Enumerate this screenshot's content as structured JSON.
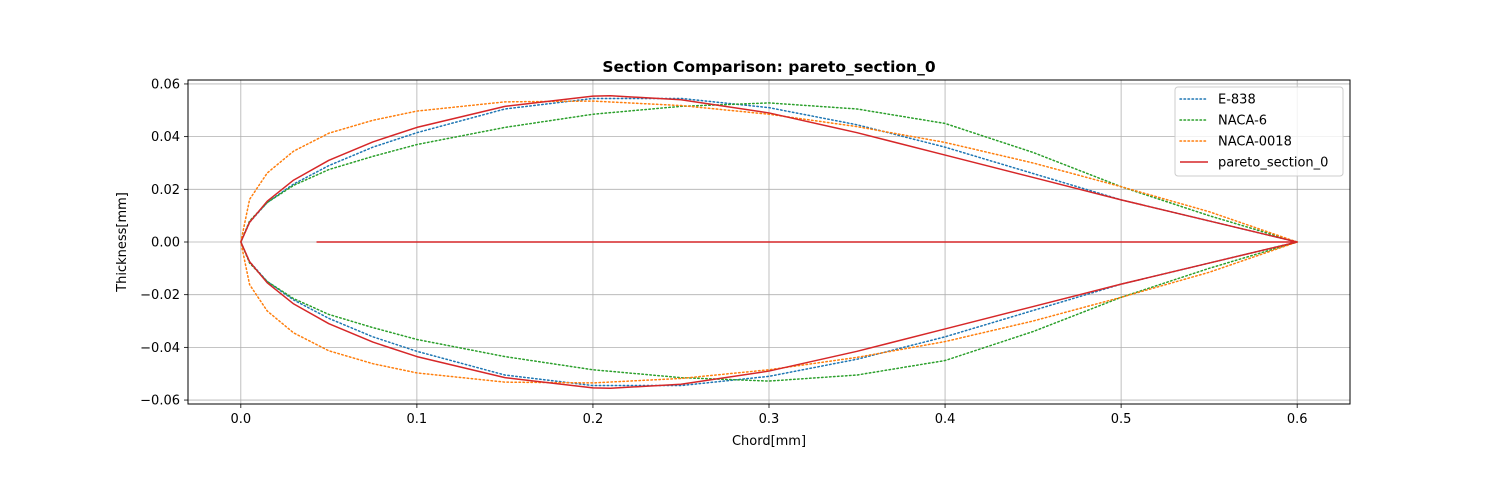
{
  "chart_data": {
    "type": "line",
    "title": "Section Comparison: pareto_section_0",
    "xlabel": "Chord[mm]",
    "ylabel": "Thickness[mm]",
    "xlim": [
      -0.03,
      0.63
    ],
    "ylim": [
      -0.0615,
      0.0615
    ],
    "xticks": [
      0.0,
      0.1,
      0.2,
      0.3,
      0.4,
      0.5,
      0.6
    ],
    "xtick_labels": [
      "0.0",
      "0.1",
      "0.2",
      "0.3",
      "0.4",
      "0.5",
      "0.6"
    ],
    "yticks": [
      0.06,
      0.04,
      0.02,
      0.0,
      -0.02,
      -0.04,
      -0.06
    ],
    "ytick_labels": [
      "0.06",
      "0.04",
      "0.02",
      "0.00",
      "−0.02",
      "−0.04",
      "−0.06"
    ],
    "grid": true,
    "legend_position": "top-right",
    "series": [
      {
        "name": "E-838",
        "style": "dotted",
        "color": "#1f77b4",
        "x": [
          0.6,
          0.55,
          0.5,
          0.45,
          0.4,
          0.35,
          0.3,
          0.25,
          0.2,
          0.15,
          0.1,
          0.075,
          0.05,
          0.03,
          0.015,
          0.005,
          0.0,
          0.005,
          0.015,
          0.03,
          0.05,
          0.075,
          0.1,
          0.15,
          0.2,
          0.25,
          0.3,
          0.35,
          0.4,
          0.45,
          0.5,
          0.55,
          0.6
        ],
        "y": [
          0.0,
          0.008,
          0.016,
          0.026,
          0.036,
          0.0445,
          0.051,
          0.0545,
          0.0545,
          0.0505,
          0.0415,
          0.036,
          0.029,
          0.022,
          0.015,
          0.0075,
          0.0,
          -0.0075,
          -0.015,
          -0.022,
          -0.029,
          -0.036,
          -0.0415,
          -0.0505,
          -0.0545,
          -0.0545,
          -0.051,
          -0.0445,
          -0.036,
          -0.026,
          -0.016,
          -0.008,
          0.0
        ]
      },
      {
        "name": "NACA-6",
        "style": "dotted",
        "color": "#2ca02c",
        "x": [
          0.6,
          0.55,
          0.5,
          0.45,
          0.4,
          0.35,
          0.3,
          0.25,
          0.2,
          0.15,
          0.1,
          0.075,
          0.05,
          0.03,
          0.015,
          0.005,
          0.0,
          0.005,
          0.015,
          0.03,
          0.05,
          0.075,
          0.1,
          0.15,
          0.2,
          0.25,
          0.3,
          0.35,
          0.4,
          0.45,
          0.5,
          0.55,
          0.6
        ],
        "y": [
          0.0,
          0.01,
          0.021,
          0.034,
          0.045,
          0.0505,
          0.0528,
          0.0515,
          0.0485,
          0.0435,
          0.037,
          0.0325,
          0.0275,
          0.0215,
          0.015,
          0.008,
          0.0,
          -0.008,
          -0.015,
          -0.0215,
          -0.0275,
          -0.0325,
          -0.037,
          -0.0435,
          -0.0485,
          -0.0515,
          -0.0528,
          -0.0505,
          -0.045,
          -0.034,
          -0.021,
          -0.01,
          0.0
        ]
      },
      {
        "name": "NACA-0018",
        "style": "dotted",
        "color": "#ff7f0e",
        "x": [
          0.6,
          0.55,
          0.5,
          0.45,
          0.4,
          0.35,
          0.3,
          0.25,
          0.2,
          0.15,
          0.1,
          0.075,
          0.05,
          0.03,
          0.015,
          0.005,
          0.0,
          0.005,
          0.015,
          0.03,
          0.05,
          0.075,
          0.1,
          0.15,
          0.2,
          0.25,
          0.3,
          0.35,
          0.4,
          0.45,
          0.5,
          0.55,
          0.6
        ],
        "y": [
          0.0,
          0.0115,
          0.021,
          0.03,
          0.0378,
          0.0438,
          0.0485,
          0.0518,
          0.0535,
          0.0532,
          0.0497,
          0.0462,
          0.0413,
          0.0345,
          0.0262,
          0.0162,
          0.0,
          -0.0162,
          -0.0262,
          -0.0345,
          -0.0413,
          -0.0462,
          -0.0497,
          -0.0532,
          -0.0535,
          -0.0518,
          -0.0485,
          -0.0438,
          -0.0378,
          -0.03,
          -0.021,
          -0.0115,
          0.0
        ]
      },
      {
        "name": "pareto_section_0",
        "style": "solid",
        "color": "#d62728",
        "x": [
          0.6,
          0.55,
          0.5,
          0.45,
          0.4,
          0.35,
          0.3,
          0.25,
          0.21,
          0.2,
          0.15,
          0.1,
          0.075,
          0.05,
          0.03,
          0.015,
          0.005,
          0.0,
          0.005,
          0.015,
          0.03,
          0.05,
          0.075,
          0.1,
          0.15,
          0.2,
          0.21,
          0.25,
          0.3,
          0.35,
          0.4,
          0.45,
          0.5,
          0.55,
          0.6,
          0.6,
          0.043
        ],
        "y": [
          0.0,
          0.008,
          0.016,
          0.0245,
          0.033,
          0.0415,
          0.049,
          0.054,
          0.0555,
          0.0554,
          0.0515,
          0.0435,
          0.038,
          0.031,
          0.0235,
          0.0155,
          0.0075,
          0.0,
          -0.0075,
          -0.0155,
          -0.0235,
          -0.031,
          -0.038,
          -0.0435,
          -0.0515,
          -0.0554,
          -0.0555,
          -0.054,
          -0.049,
          -0.0415,
          -0.033,
          -0.0245,
          -0.016,
          -0.008,
          0.0,
          0.0,
          0.0
        ]
      }
    ]
  }
}
